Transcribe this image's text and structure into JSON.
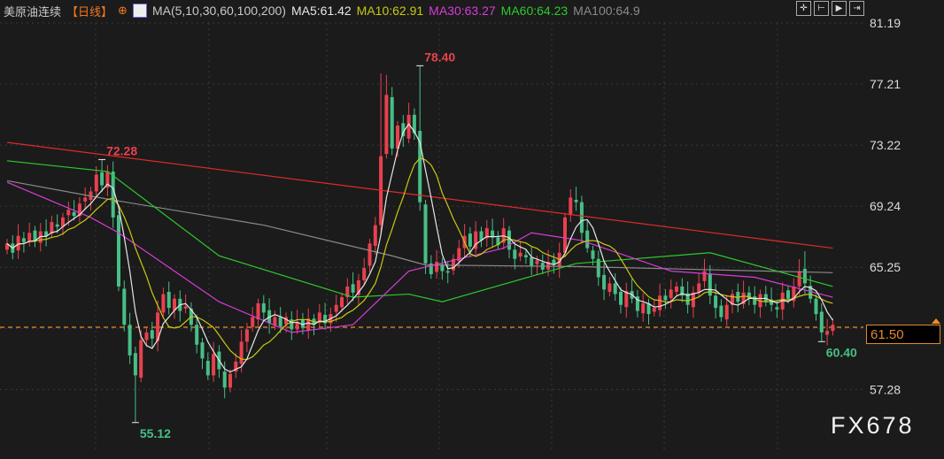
{
  "header": {
    "instrument": "美原油连续",
    "period": "【日线】",
    "ma_set": "MA(5,10,30,60,100,200)",
    "ma_values": [
      {
        "label": "MA5:61.42",
        "color": "#e6e6e6"
      },
      {
        "label": "MA10:62.91",
        "color": "#c8c814"
      },
      {
        "label": "MA30:63.27",
        "color": "#d83cd8"
      },
      {
        "label": "MA60:64.23",
        "color": "#2ec82e"
      },
      {
        "label": "MA100:64.9",
        "color": "#8a8a8a"
      }
    ]
  },
  "toolbar": [
    "crosshair-icon",
    "range-icon",
    "play-icon",
    "exit-icon"
  ],
  "current_price": "61.50",
  "watermark": "FX678",
  "colors": {
    "up": "#e8414e",
    "down": "#47bf86",
    "ma200": "#e02a2a",
    "last_line": "#f08c28",
    "bg": "#1b1b1b"
  },
  "chart_data": {
    "type": "candlestick",
    "yaxis": {
      "ticks": [
        "81.19",
        "77.21",
        "73.22",
        "69.24",
        "65.25",
        "61.27",
        "57.28"
      ],
      "ylim": [
        55.0,
        81.19
      ]
    },
    "grid": true,
    "close": [
      66.8,
      66.2,
      67.3,
      66.9,
      67.5,
      67.0,
      67.6,
      67.3,
      68.2,
      67.9,
      68.5,
      69.0,
      68.6,
      69.4,
      69.8,
      70.2,
      71.3,
      70.6,
      71.5,
      68.5,
      64.0,
      61.5,
      59.5,
      58.2,
      60.5,
      61.0,
      60.6,
      62.3,
      63.5,
      62.6,
      63.2,
      62.4,
      62.7,
      61.5,
      60.2,
      59.3,
      58.2,
      59.6,
      58.6,
      57.4,
      58.3,
      59.1,
      60.4,
      61.2,
      62.0,
      62.9,
      62.3,
      61.6,
      62.0,
      61.4,
      62.0,
      61.2,
      61.7,
      61.3,
      61.9,
      61.5,
      62.3,
      61.6,
      62.2,
      62.8,
      63.3,
      64.0,
      63.6,
      64.4,
      65.2,
      66.8,
      68.0,
      72.5,
      76.5,
      73.0,
      74.5,
      73.8,
      75.2,
      74.0,
      69.5,
      65.5,
      64.8,
      65.6,
      65.0,
      64.9,
      65.8,
      66.5,
      67.3,
      66.6,
      67.6,
      67.0,
      67.8,
      67.2,
      66.7,
      67.8,
      66.4,
      65.8,
      66.2,
      65.9,
      65.3,
      65.7,
      65.1,
      65.6,
      65.4,
      66.2,
      68.5,
      69.8,
      69.5,
      67.5,
      66.5,
      65.8,
      64.6,
      63.8,
      64.2,
      63.5,
      62.8,
      63.7,
      63.2,
      62.4,
      62.9,
      62.2,
      62.6,
      63.4,
      63.1,
      63.8,
      64.0,
      63.4,
      62.8,
      63.6,
      64.2,
      65.0,
      63.4,
      62.6,
      62.0,
      62.8,
      63.5,
      63.0,
      63.6,
      63.2,
      62.8,
      63.5,
      63.0,
      62.8,
      62.5,
      63.6,
      63.2,
      64.0,
      65.0,
      64.2,
      63.2,
      62.2,
      61.0,
      61.1,
      61.5
    ],
    "extremes": [
      {
        "label": "72.28",
        "value": 72.28,
        "bar": 17,
        "color": "#e8414e"
      },
      {
        "label": "55.12",
        "value": 55.12,
        "bar": 23,
        "color": "#47bf86"
      },
      {
        "label": "78.40",
        "value": 78.4,
        "bar": 74,
        "color": "#e8414e"
      },
      {
        "label": "60.40",
        "value": 60.4,
        "bar": 146,
        "color": "#47bf86"
      }
    ],
    "ma_lines": [
      {
        "name": "MA30",
        "color": "#d83cd8",
        "points": [
          [
            0,
            70.8
          ],
          [
            15,
            68.5
          ],
          [
            20,
            67.5
          ],
          [
            38,
            63.0
          ],
          [
            51,
            61.0
          ],
          [
            62,
            61.5
          ],
          [
            72,
            65.0
          ],
          [
            89,
            66.5
          ],
          [
            94,
            67.5
          ],
          [
            103,
            67.0
          ],
          [
            119,
            65.0
          ],
          [
            134,
            64.6
          ],
          [
            148,
            63.3
          ]
        ]
      },
      {
        "name": "MA60",
        "color": "#2ec82e",
        "points": [
          [
            0,
            72.2
          ],
          [
            18,
            71.5
          ],
          [
            38,
            66.0
          ],
          [
            62,
            63.3
          ],
          [
            72,
            63.5
          ],
          [
            78,
            63.0
          ],
          [
            102,
            65.5
          ],
          [
            126,
            66.2
          ],
          [
            148,
            64.0
          ]
        ]
      },
      {
        "name": "MA100",
        "color": "#8a8a8a",
        "points": [
          [
            0,
            70.9
          ],
          [
            18,
            69.7
          ],
          [
            46,
            68.0
          ],
          [
            69,
            66.0
          ],
          [
            75,
            65.4
          ],
          [
            102,
            65.3
          ],
          [
            148,
            64.9
          ]
        ]
      },
      {
        "name": "MA200",
        "color": "#e02a2a",
        "points": [
          [
            0,
            73.4
          ],
          [
            148,
            66.5
          ]
        ]
      }
    ]
  }
}
